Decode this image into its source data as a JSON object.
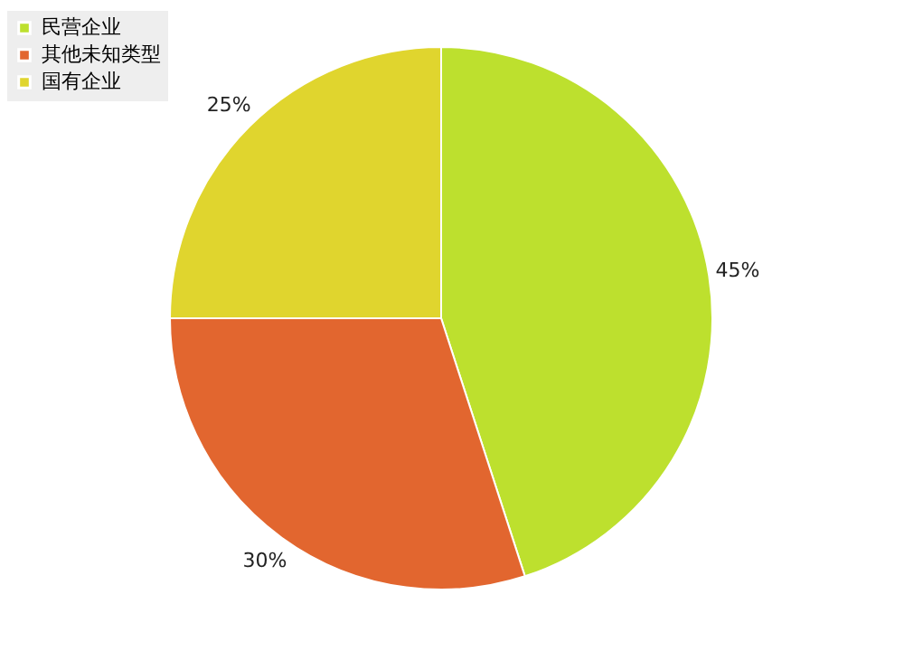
{
  "chart_data": {
    "type": "pie",
    "categories": [
      "民营企业",
      "其他未知类型",
      "国有企业"
    ],
    "values": [
      45,
      30,
      25
    ],
    "colors": [
      "#bde02e",
      "#e2662f",
      "#e0d52e"
    ],
    "value_labels": [
      "45%",
      "30%",
      "25%"
    ],
    "legend": "top left"
  }
}
